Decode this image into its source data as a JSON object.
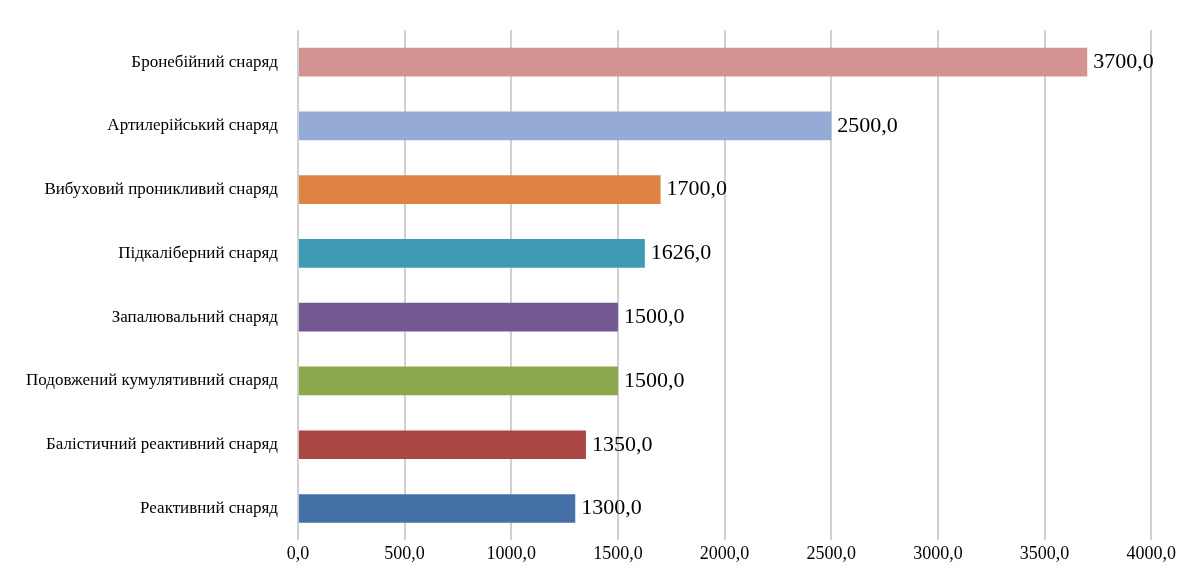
{
  "chart_data": {
    "type": "bar",
    "orientation": "horizontal",
    "categories": [
      "Бронебійний снаряд",
      "Артилерійський снаряд",
      "Вибуховий проникливий снаряд",
      "Підкаліберний снаряд",
      "Запалювальний снаряд",
      "Подовжений кумулятивний снаряд",
      "Балістичний реактивний снаряд",
      "Реактивний снаряд"
    ],
    "values": [
      3700,
      2500,
      1700,
      1626,
      1500,
      1500,
      1350,
      1300
    ],
    "colors": [
      "#d39391",
      "#95abd5",
      "#de8341",
      "#3f9bb5",
      "#735892",
      "#8ba84d",
      "#aa4744",
      "#4470a6"
    ],
    "value_labels": [
      "3700,0",
      "2500,0",
      "1700,0",
      "1626,0",
      "1500,0",
      "1500,0",
      "1350,0",
      "1300,0"
    ],
    "xlim": [
      0,
      4000
    ],
    "xticks": [
      {
        "value": 0,
        "label": "0,0"
      },
      {
        "value": 500,
        "label": "500,0"
      },
      {
        "value": 1000,
        "label": "1000,0"
      },
      {
        "value": 1500,
        "label": "1500,0"
      },
      {
        "value": 2000,
        "label": "2000,0"
      },
      {
        "value": 2500,
        "label": "2500,0"
      },
      {
        "value": 3000,
        "label": "3000,0"
      },
      {
        "value": 3500,
        "label": "3500,0"
      },
      {
        "value": 4000,
        "label": "4000,0"
      }
    ],
    "grid": "x"
  }
}
